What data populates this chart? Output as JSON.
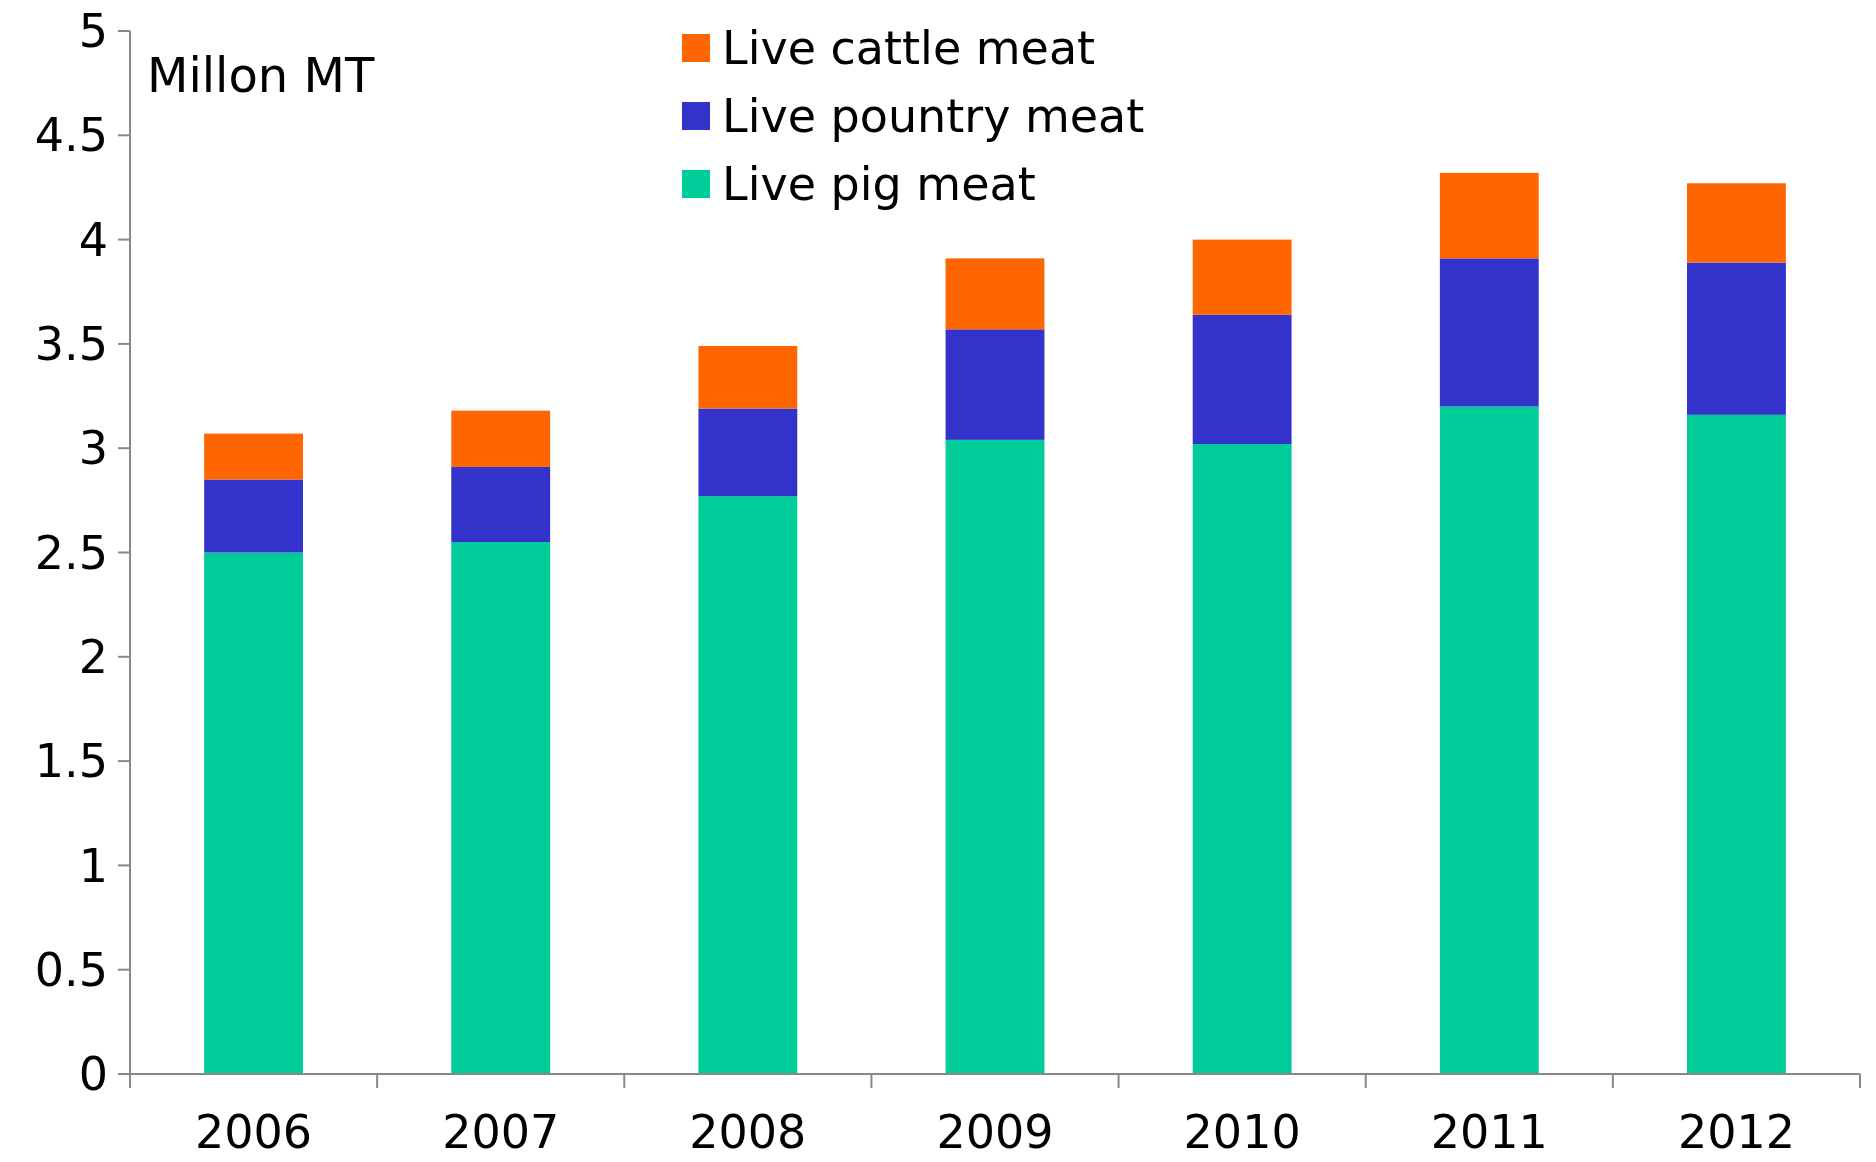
{
  "chart_data": {
    "type": "bar",
    "stacked": true,
    "ylabel": "Millon MT",
    "categories": [
      "2006",
      "2007",
      "2008",
      "2009",
      "2010",
      "2011",
      "2012"
    ],
    "series": [
      {
        "name": "Live pig meat",
        "color": "#00cc99",
        "values": [
          2.5,
          2.55,
          2.77,
          3.04,
          3.02,
          3.2,
          3.16
        ]
      },
      {
        "name": "Live pountry meat",
        "color": "#3333cc",
        "values": [
          0.35,
          0.36,
          0.42,
          0.53,
          0.62,
          0.71,
          0.73
        ]
      },
      {
        "name": "Live cattle meat",
        "color": "#ff6600",
        "values": [
          0.22,
          0.27,
          0.3,
          0.34,
          0.36,
          0.41,
          0.38
        ]
      }
    ],
    "ylim": [
      0,
      5
    ],
    "yticks": [
      0,
      0.5,
      1,
      1.5,
      2,
      2.5,
      3,
      3.5,
      4,
      4.5,
      5
    ],
    "grid": false,
    "legend": "top"
  }
}
